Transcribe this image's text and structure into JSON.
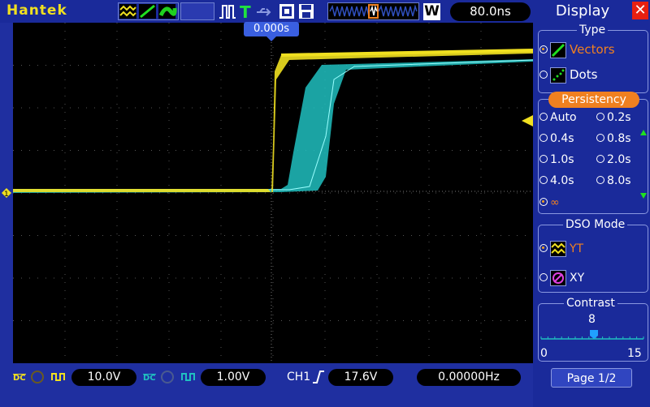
{
  "topbar": {
    "brand": "Hantek",
    "timebase": "80.0ns",
    "timebase_icon": "W",
    "trigger_icon": "T"
  },
  "screen": {
    "trigger_pos_label": "0.000s"
  },
  "bottombar": {
    "ch1_coupling": "DC",
    "ch1_scale": "10.0V",
    "ch2_coupling": "DC",
    "ch2_scale": "1.00V",
    "trigger_source": "CH1",
    "trigger_level": "17.6V",
    "frequency": "0.00000Hz"
  },
  "panel": {
    "title": "Display",
    "type_header": "Type",
    "type_options": [
      "Vectors",
      "Dots"
    ],
    "persistency_header": "Persistency",
    "persistency_options": [
      "Auto",
      "0.2s",
      "0.4s",
      "0.8s",
      "1.0s",
      "2.0s",
      "4.0s",
      "8.0s"
    ],
    "persistency_infinite": "∞",
    "dso_header": "DSO Mode",
    "dso_options": [
      "YT",
      "XY"
    ],
    "contrast_header": "Contrast",
    "contrast_value": "8",
    "contrast_min": "0",
    "contrast_max": "15",
    "page": "Page 1/2"
  },
  "colors": {
    "ch1": "#f0e020",
    "ch2": "#20c0c0",
    "accent": "#f08020"
  }
}
